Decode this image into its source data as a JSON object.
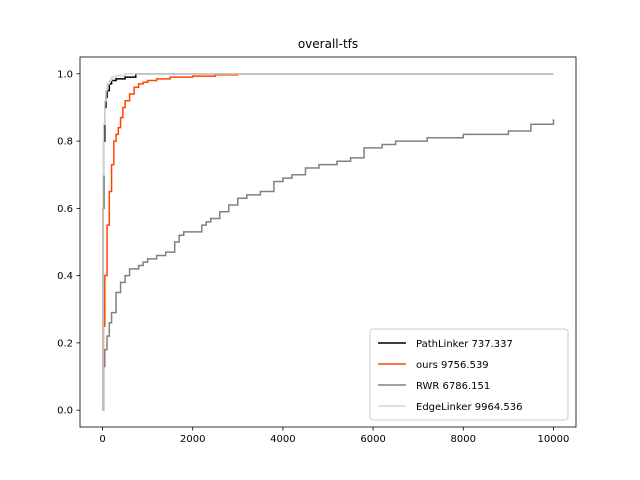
{
  "chart_data": {
    "type": "line",
    "title": "overall-tfs",
    "xlabel": "",
    "ylabel": "",
    "xlim": [
      -500,
      10500
    ],
    "ylim": [
      -0.05,
      1.05
    ],
    "xticks": [
      0,
      2000,
      4000,
      6000,
      8000,
      10000
    ],
    "yticks": [
      0.0,
      0.2,
      0.4,
      0.6,
      0.8,
      1.0
    ],
    "xtick_labels": [
      "0",
      "2000",
      "4000",
      "6000",
      "8000",
      "10000"
    ],
    "ytick_labels": [
      "0.0",
      "0.2",
      "0.4",
      "0.6",
      "0.8",
      "1.0"
    ],
    "grid": false,
    "legend_position": "lower-right",
    "series": [
      {
        "name": "PathLinker 737.337",
        "color": "#000000",
        "x": [
          0,
          10,
          25,
          50,
          75,
          100,
          150,
          200,
          300,
          500,
          737,
          1000,
          10000
        ],
        "y": [
          0.0,
          0.6,
          0.8,
          0.9,
          0.93,
          0.95,
          0.97,
          0.98,
          0.985,
          0.99,
          1.0,
          1.0,
          1.0
        ]
      },
      {
        "name": "ours 9756.539",
        "color": "#ff4500",
        "x": [
          0,
          20,
          50,
          100,
          150,
          200,
          250,
          300,
          350,
          400,
          450,
          500,
          600,
          700,
          800,
          900,
          1000,
          1200,
          1500,
          2000,
          2500,
          3000,
          10000
        ],
        "y": [
          0.0,
          0.25,
          0.4,
          0.55,
          0.65,
          0.73,
          0.8,
          0.82,
          0.84,
          0.87,
          0.9,
          0.92,
          0.94,
          0.96,
          0.97,
          0.975,
          0.98,
          0.985,
          0.99,
          0.993,
          0.997,
          1.0,
          1.0
        ]
      },
      {
        "name": "RWR 6786.151",
        "color": "#808080",
        "x": [
          0,
          20,
          50,
          100,
          150,
          200,
          300,
          400,
          500,
          600,
          700,
          800,
          900,
          1000,
          1200,
          1400,
          1600,
          1700,
          1800,
          2000,
          2200,
          2300,
          2400,
          2600,
          2800,
          3000,
          3200,
          3500,
          3800,
          4000,
          4200,
          4500,
          4800,
          5000,
          5200,
          5500,
          5800,
          6000,
          6200,
          6500,
          6800,
          7000,
          7200,
          7500,
          8000,
          8500,
          9000,
          9500,
          10000
        ],
        "y": [
          0.0,
          0.13,
          0.18,
          0.22,
          0.26,
          0.29,
          0.35,
          0.38,
          0.4,
          0.42,
          0.42,
          0.43,
          0.44,
          0.45,
          0.46,
          0.47,
          0.5,
          0.52,
          0.53,
          0.53,
          0.55,
          0.56,
          0.57,
          0.59,
          0.61,
          0.63,
          0.64,
          0.65,
          0.68,
          0.69,
          0.7,
          0.72,
          0.73,
          0.73,
          0.74,
          0.75,
          0.78,
          0.78,
          0.79,
          0.8,
          0.8,
          0.8,
          0.81,
          0.81,
          0.82,
          0.82,
          0.83,
          0.85,
          0.865
        ]
      },
      {
        "name": "EdgeLinker 9964.536",
        "color": "#d3d3d3",
        "x": [
          0,
          10,
          25,
          50,
          75,
          100,
          150,
          200,
          300,
          500,
          800,
          1000,
          10000
        ],
        "y": [
          0.0,
          0.7,
          0.85,
          0.92,
          0.95,
          0.97,
          0.98,
          0.99,
          0.995,
          1.0,
          1.0,
          1.0,
          1.0
        ]
      }
    ]
  }
}
